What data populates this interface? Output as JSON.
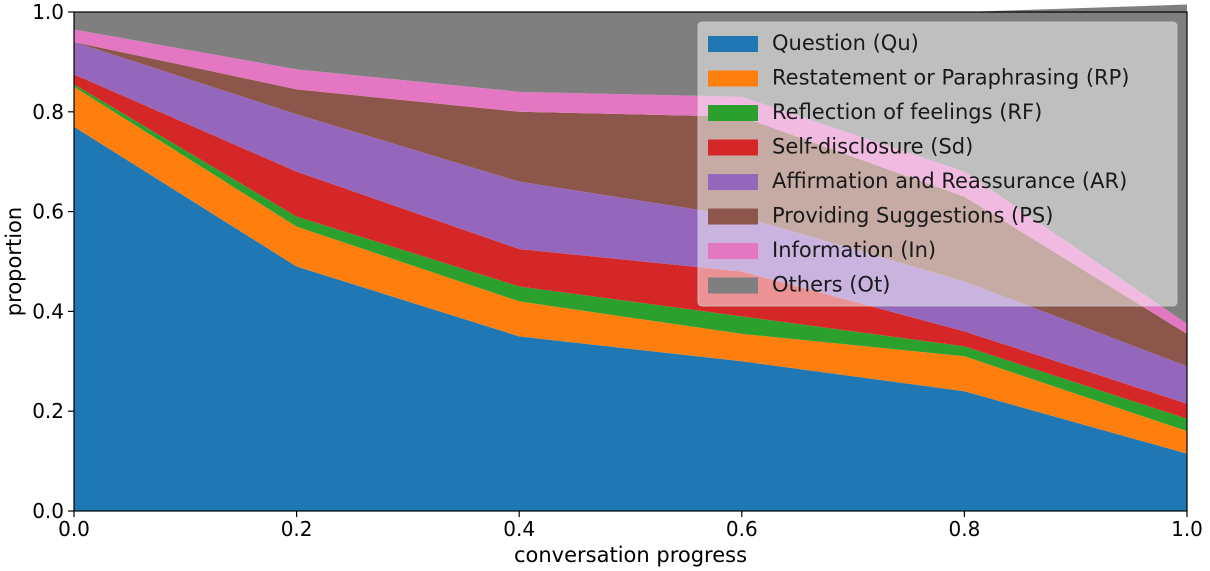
{
  "chart_data": {
    "type": "area",
    "stacked": true,
    "title": "",
    "xlabel": "conversation progress",
    "ylabel": "proportion",
    "xlim": [
      0.0,
      1.0
    ],
    "ylim": [
      0.0,
      1.0
    ],
    "x": [
      0.0,
      0.2,
      0.4,
      0.6,
      0.8,
      1.0
    ],
    "x_ticks": [
      "0.0",
      "0.2",
      "0.4",
      "0.6",
      "0.8",
      "1.0"
    ],
    "y_ticks": [
      "0.0",
      "0.2",
      "0.4",
      "0.6",
      "0.8",
      "1.0"
    ],
    "grid": false,
    "legend_position": "top-right",
    "series": [
      {
        "name": "Question (Qu)",
        "color": "#1f77b4",
        "values": [
          0.77,
          0.49,
          0.35,
          0.3,
          0.24,
          0.115
        ]
      },
      {
        "name": "Restatement or Paraphrasing (RP)",
        "color": "#ff7f0e",
        "values": [
          0.08,
          0.08,
          0.07,
          0.055,
          0.07,
          0.045
        ]
      },
      {
        "name": "Reflection of feelings (RF)",
        "color": "#2ca02c",
        "values": [
          0.005,
          0.02,
          0.03,
          0.035,
          0.02,
          0.025
        ]
      },
      {
        "name": "Self-disclosure (Sd)",
        "color": "#d62728",
        "values": [
          0.02,
          0.09,
          0.075,
          0.09,
          0.03,
          0.03
        ]
      },
      {
        "name": "Affirmation and Reassurance (AR)",
        "color": "#9467bd",
        "values": [
          0.065,
          0.115,
          0.135,
          0.11,
          0.1,
          0.075
        ]
      },
      {
        "name": "Providing Suggestions (PS)",
        "color": "#8c564b",
        "values": [
          0.0,
          0.05,
          0.14,
          0.2,
          0.17,
          0.065
        ]
      },
      {
        "name": "Information (In)",
        "color": "#e377c2",
        "values": [
          0.025,
          0.04,
          0.04,
          0.04,
          0.05,
          0.02
        ]
      },
      {
        "name": "Others (Ot)",
        "color": "#7f7f7f",
        "values": [
          0.035,
          0.115,
          0.16,
          0.17,
          0.32,
          0.64
        ]
      }
    ]
  }
}
